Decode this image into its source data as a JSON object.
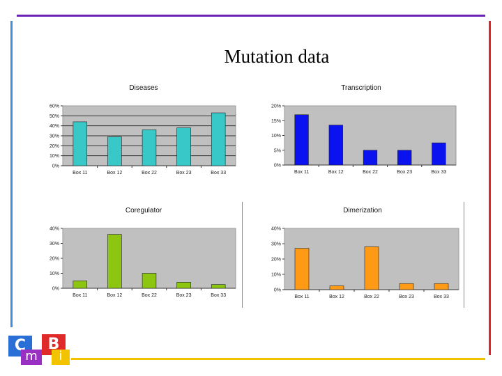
{
  "slide": {
    "title": "Mutation data"
  },
  "logo": {
    "c": "C",
    "m": "m",
    "b": "B",
    "i": "i"
  },
  "chart_data": [
    {
      "type": "bar",
      "title": "Diseases",
      "categories": [
        "Box 11",
        "Box 12",
        "Box 22",
        "Box 23",
        "Box 33"
      ],
      "values": [
        44,
        29,
        36,
        38,
        53
      ],
      "ylim": [
        0,
        60
      ],
      "yticks": [
        "60%",
        "50%",
        "40%",
        "30%",
        "20%",
        "10%",
        "0%"
      ],
      "grid": true,
      "bar_color": "#38c8c8"
    },
    {
      "type": "bar",
      "title": "Transcription",
      "categories": [
        "Box 11",
        "Box 12",
        "Box 22",
        "Box 23",
        "Box 33"
      ],
      "values": [
        17,
        13.5,
        5,
        5,
        7.5
      ],
      "ylim": [
        0,
        20
      ],
      "yticks": [
        "20%",
        "15%",
        "10%",
        "5%",
        "0%"
      ],
      "grid": false,
      "bar_color": "#0a12ef"
    },
    {
      "type": "bar",
      "title": "Coregulator",
      "categories": [
        "Box 11",
        "Box 12",
        "Box 22",
        "Box 23",
        "Box 33"
      ],
      "values": [
        5,
        36,
        10,
        4,
        2.5
      ],
      "ylim": [
        0,
        40
      ],
      "yticks": [
        "40%",
        "30%",
        "20%",
        "10%",
        "0%"
      ],
      "grid": false,
      "bar_color": "#8cc610"
    },
    {
      "type": "bar",
      "title": "Dimerization",
      "categories": [
        "Box 11",
        "Box 12",
        "Box 22",
        "Box 23",
        "Box 33"
      ],
      "values": [
        27,
        2.5,
        28,
        4,
        4
      ],
      "ylim": [
        0,
        40
      ],
      "yticks": [
        "40%",
        "30%",
        "20%",
        "10%",
        "0%"
      ],
      "grid": false,
      "bar_color": "#ff9a14"
    }
  ]
}
